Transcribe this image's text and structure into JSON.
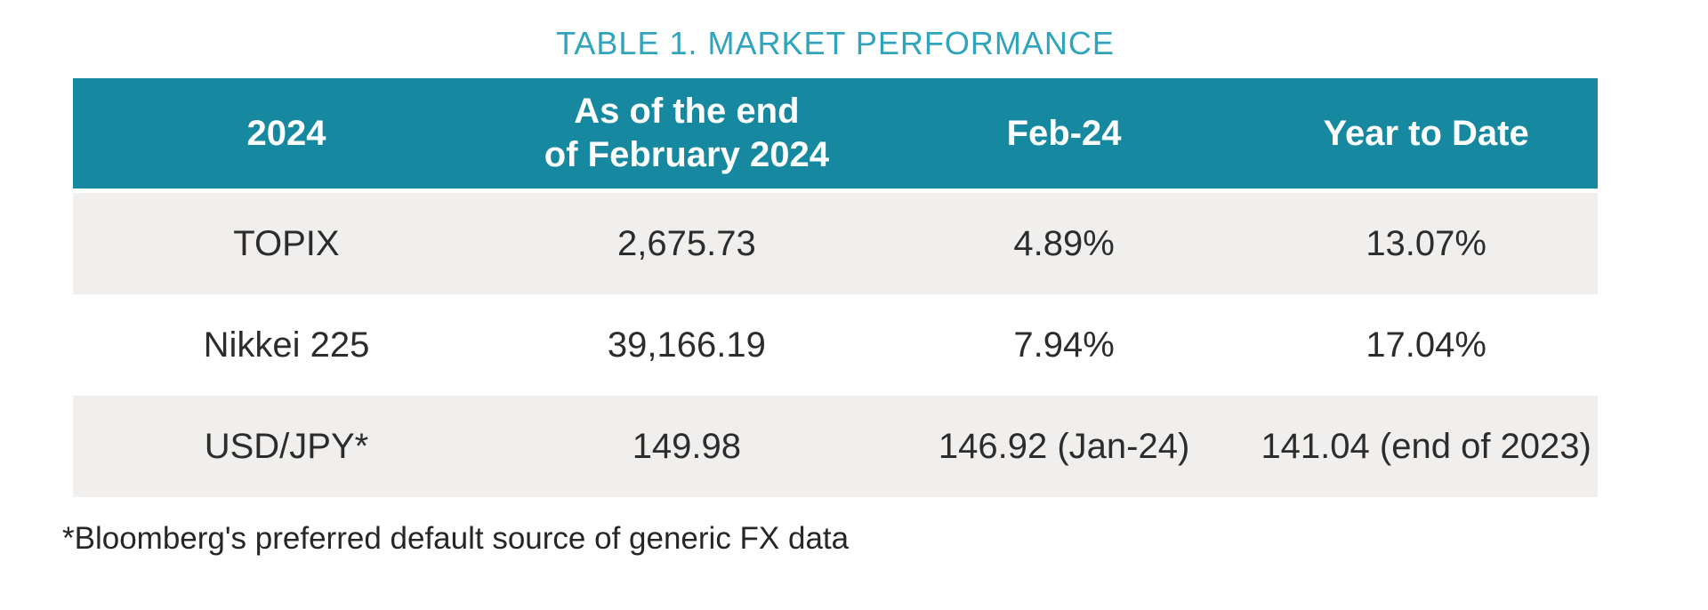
{
  "title": {
    "text": "TABLE 1. MARKET PERFORMANCE"
  },
  "colors": {
    "title_teal": "#2fa4bc",
    "header_background": "#1689a0",
    "header_text": "#ffffff",
    "alt_row_background": "#f0efed",
    "body_text": "#2c2c2c"
  },
  "table": {
    "columns": [
      {
        "label": "2024"
      },
      {
        "label": "As of the end\nof February 2024"
      },
      {
        "label": "Feb-24"
      },
      {
        "label": "Year to Date"
      }
    ],
    "rows": [
      {
        "cells": [
          "TOPIX",
          "2,675.73",
          "4.89%",
          "13.07%"
        ]
      },
      {
        "cells": [
          "Nikkei 225",
          "39,166.19",
          "7.94%",
          "17.04%"
        ]
      },
      {
        "cells": [
          "USD/JPY*",
          "149.98",
          "146.92 (Jan-24)",
          "141.04 (end of 2023)"
        ]
      }
    ]
  },
  "footnote": {
    "text": "*Bloomberg's preferred default source of generic FX data"
  }
}
